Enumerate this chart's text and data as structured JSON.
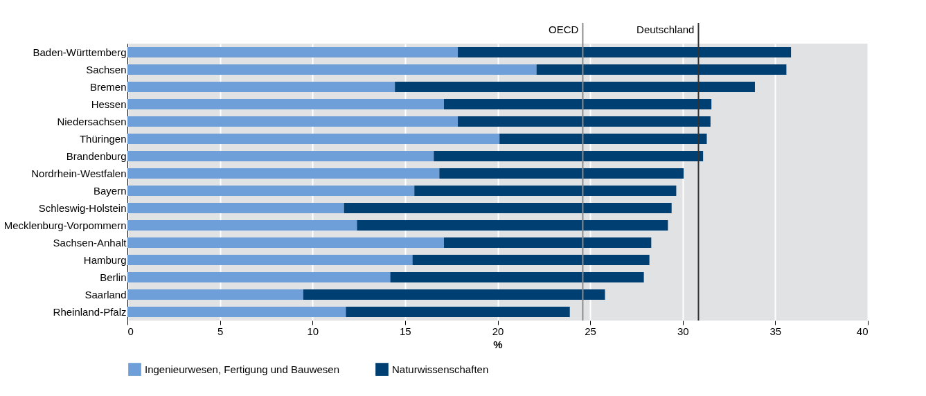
{
  "chart_data": {
    "type": "bar",
    "orientation": "horizontal",
    "stacked": true,
    "xlabel": "%",
    "categories": [
      "Baden-Württemberg",
      "Sachsen",
      "Bremen",
      "Hessen",
      "Niedersachsen",
      "Thüringen",
      "Brandenburg",
      "Nordrhein-Westfalen",
      "Bayern",
      "Schleswig-Holstein",
      "Mecklenburg-Vorpommern",
      "Sachsen-Anhalt",
      "Hamburg",
      "Berlin",
      "Saarland",
      "Rheinland-Pfalz"
    ],
    "series": [
      {
        "name": "Ingenieurwesen, Fertigung und Bauwesen",
        "color": "#6f9fd8",
        "values": [
          17.85,
          22.1,
          14.45,
          17.1,
          17.85,
          20.1,
          16.55,
          16.85,
          15.5,
          11.7,
          12.4,
          17.1,
          15.4,
          14.2,
          9.5,
          11.8
        ]
      },
      {
        "name": "Naturwissenschaften",
        "color": "#003f72",
        "values": [
          18.0,
          13.5,
          19.45,
          14.45,
          13.65,
          11.2,
          14.55,
          13.2,
          14.15,
          17.7,
          16.8,
          11.2,
          12.8,
          13.7,
          16.3,
          12.1
        ]
      }
    ],
    "xlim": [
      0,
      40
    ],
    "xticks": [
      0,
      5,
      10,
      15,
      20,
      25,
      30,
      35,
      40
    ],
    "ref_lines": [
      {
        "axis": "x",
        "value": 24.6,
        "label": "OECD",
        "color": "#8c8c8c"
      },
      {
        "axis": "x",
        "value": 30.85,
        "label": "Deutschland",
        "color": "#333333"
      }
    ],
    "grid": "x",
    "legend": "bottom"
  }
}
